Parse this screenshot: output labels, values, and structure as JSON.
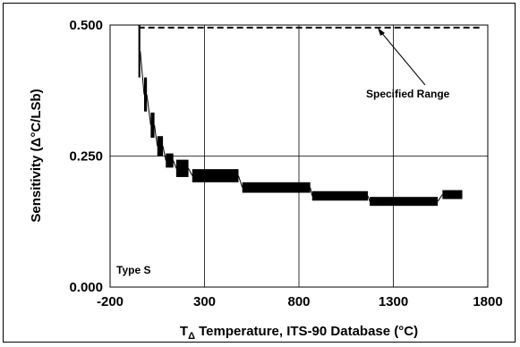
{
  "chart_data": {
    "type": "scatter",
    "xlabel_main": "T",
    "xlabel_sub": "Δ",
    "xlabel_rest": " Temperature, ITS-90 Database (°C)",
    "ylabel": "Sensitivity (Δ°C/LSb)",
    "xlim": [
      -200,
      1800
    ],
    "ylim": [
      0,
      0.5
    ],
    "x_ticks": [
      -200,
      300,
      800,
      1300,
      1800
    ],
    "x_tick_labels": [
      "-200",
      "300",
      "800",
      "1300",
      "1800"
    ],
    "y_ticks": [
      0,
      0.25,
      0.5
    ],
    "y_tick_labels": [
      "0.000",
      "0.250",
      "0.500"
    ],
    "grid": true,
    "annotations": {
      "type_label": "Type S",
      "range_label": "Specified Range"
    },
    "specified_range": {
      "x": [
        -50,
        1768
      ],
      "y": 0.495
    },
    "series": [
      {
        "step_segments": [
          {
            "x0": -50,
            "x1": -40,
            "y_top": 0.5,
            "y_bottom": 0.4
          },
          {
            "x0": -20,
            "x1": -5,
            "y_top": 0.4,
            "y_bottom": 0.335
          },
          {
            "x0": 15,
            "x1": 35,
            "y_top": 0.333,
            "y_bottom": 0.285
          },
          {
            "x0": 50,
            "x1": 80,
            "y_top": 0.288,
            "y_bottom": 0.25
          },
          {
            "x0": 95,
            "x1": 135,
            "y_top": 0.255,
            "y_bottom": 0.228
          },
          {
            "x0": 150,
            "x1": 215,
            "y_top": 0.243,
            "y_bottom": 0.21
          },
          {
            "x0": 235,
            "x1": 480,
            "y_top": 0.225,
            "y_bottom": 0.2
          },
          {
            "x0": 500,
            "x1": 860,
            "y_top": 0.2,
            "y_bottom": 0.18
          },
          {
            "x0": 870,
            "x1": 1165,
            "y_top": 0.183,
            "y_bottom": 0.165
          },
          {
            "x0": 1175,
            "x1": 1535,
            "y_top": 0.172,
            "y_bottom": 0.155
          },
          {
            "x0": 1560,
            "x1": 1665,
            "y_top": 0.185,
            "y_bottom": 0.168
          }
        ]
      }
    ]
  }
}
